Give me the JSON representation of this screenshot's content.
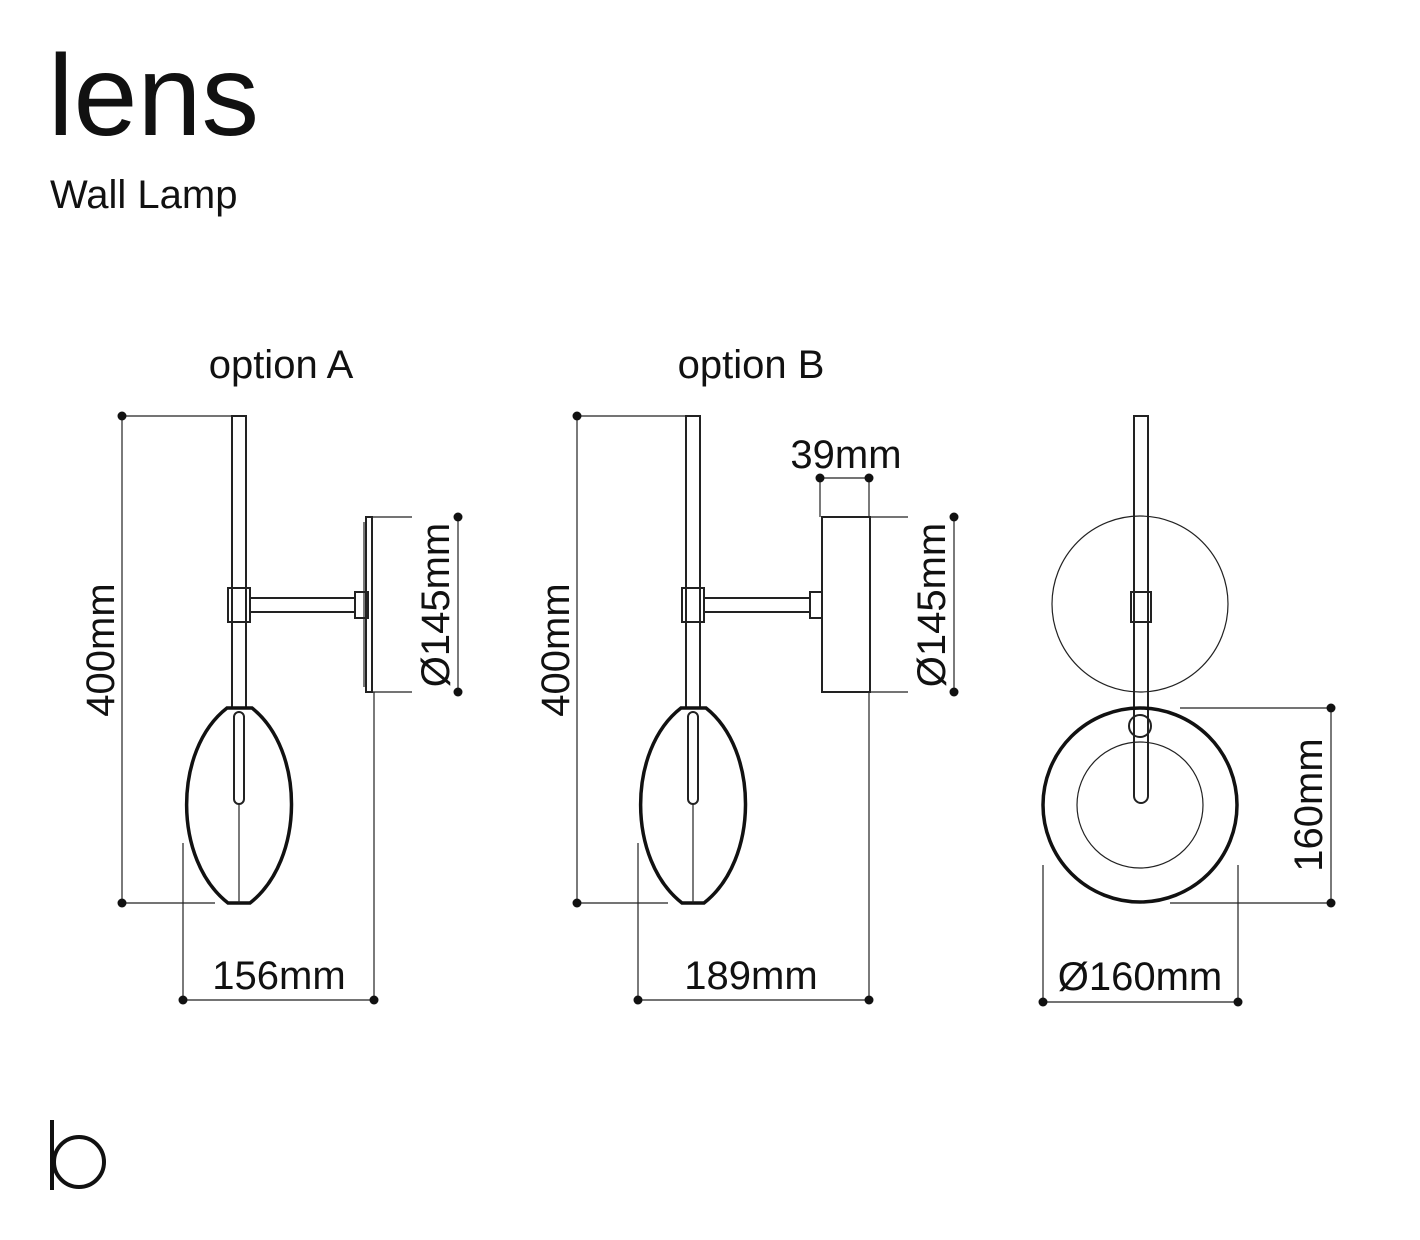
{
  "header": {
    "title": "lens",
    "subtitle": "Wall Lamp"
  },
  "views": [
    {
      "label": "option A",
      "height": "400mm",
      "canopy": "Ø145mm",
      "depth": "156mm"
    },
    {
      "label": "option B",
      "height": "400mm",
      "canopy": "Ø145mm",
      "canopy_depth": "39mm",
      "depth": "189mm"
    },
    {
      "shade_height": "160mm",
      "shade_diameter": "Ø160mm"
    }
  ]
}
